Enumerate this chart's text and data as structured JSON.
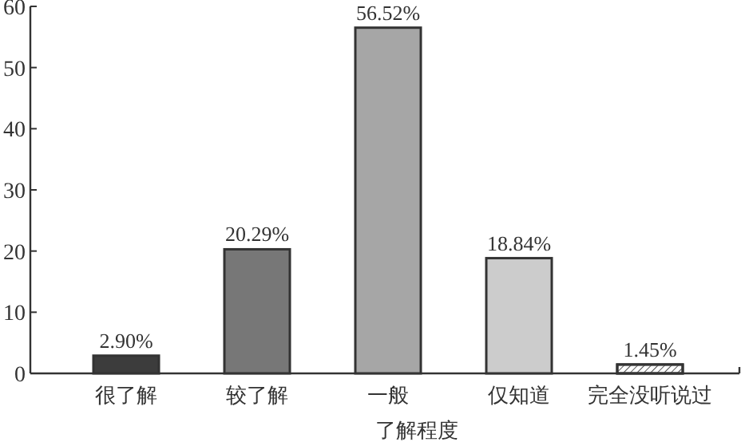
{
  "chart_data": {
    "type": "bar",
    "xlabel": "了解程度",
    "categories": [
      "很了解",
      "较了解",
      "一般",
      "仅知道",
      "完全没听说过"
    ],
    "values": [
      2.9,
      20.29,
      56.52,
      18.84,
      1.45
    ],
    "value_labels": [
      "2.90%",
      "20.29%",
      "56.52%",
      "18.84%",
      "1.45%"
    ],
    "colors": [
      "#3c3c3c",
      "#777777",
      "#a6a6a6",
      "#cccccc",
      "#ffffff"
    ],
    "ylim": [
      0,
      60
    ],
    "yticks": [
      0,
      10,
      20,
      30,
      40,
      50,
      60
    ]
  }
}
